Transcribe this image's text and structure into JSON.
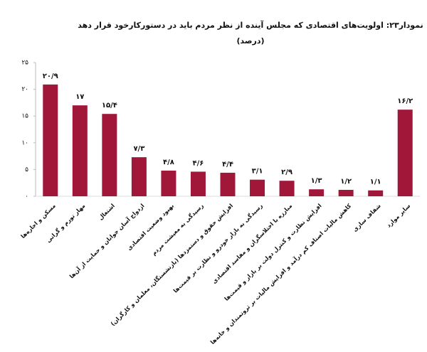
{
  "chart_data": {
    "type": "bar",
    "title": "نمودار۲۳: اولویت‌های اقتصادی که مجلس آینده از نظر مردم باید در دستورکارخود قرار دهد",
    "subtitle": "(درصد)",
    "categories": [
      "مسکن و اجاره‌ها",
      "مهار تورم و گرانی",
      "اشتغال",
      "ازدواج آسان جوانان و حمایت از آن‌ها",
      "بهبود وضعیت اقتصادی",
      "رسیدگی به معیشت مردم",
      "افزایش حقوق و دستمزدها (بازنشستگان، معلمان و کارگران)",
      "رسیدگی به بازار خودرو و نظارت بر قیمت‌ها",
      "مبارزه با اختلاسگران و مفاسد اقتصادی",
      "افزایش نظارت و کنترل دولت بر بازار و قیمت‌ها",
      "کاهش مالیات اصناف کم درآمد و افزایش مالیات بر ثروتمندان و خانه‌ها",
      "شفاف سازی",
      "سایر موارد"
    ],
    "values": [
      20.9,
      17,
      15.4,
      7.3,
      4.8,
      4.6,
      4.4,
      3.1,
      2.9,
      1.3,
      1.2,
      1.1,
      16.2
    ],
    "value_labels": [
      "۲۰/۹",
      "۱۷",
      "۱۵/۴",
      "۷/۳",
      "۴/۸",
      "۴/۶",
      "۴/۴",
      "۳/۱",
      "۲/۹",
      "۱/۳",
      "۱/۲",
      "۱/۱",
      "۱۶/۲"
    ],
    "color": "#a0173a",
    "ylim": [
      0,
      25
    ],
    "yticks": [
      {
        "value": 0,
        "label": "۰"
      },
      {
        "value": 5,
        "label": "۵"
      },
      {
        "value": 10,
        "label": "۱۰"
      },
      {
        "value": 15,
        "label": "۱۵"
      },
      {
        "value": 20,
        "label": "۲۰"
      },
      {
        "value": 25,
        "label": "۲۵"
      }
    ],
    "grid": false
  }
}
